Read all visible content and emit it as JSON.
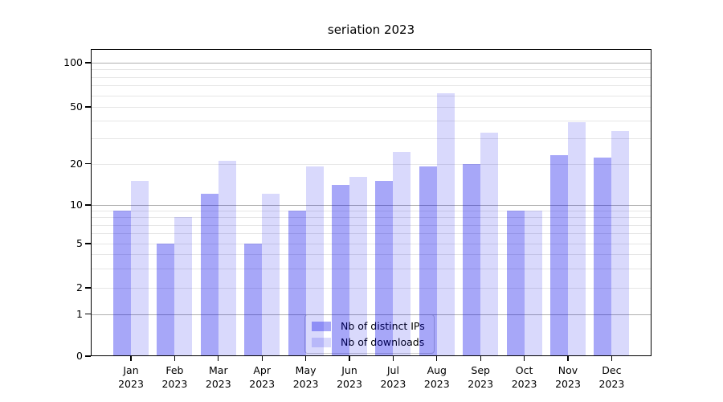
{
  "title": "seriation 2023",
  "colors": {
    "series_distinct_ips": "rgba(0,0,235,0.345)",
    "series_downloads": "rgba(0,0,235,0.148)",
    "grid_major": "#b0b0b0",
    "grid_minor": "#e6e6e6",
    "axis": "#000000",
    "legend_border": "#cccccc",
    "legend_background": "rgba(255,255,255,0.8)"
  },
  "chart_data": {
    "type": "bar",
    "title": "seriation 2023",
    "categories": [
      {
        "month": "Jan",
        "year": "2023"
      },
      {
        "month": "Feb",
        "year": "2023"
      },
      {
        "month": "Mar",
        "year": "2023"
      },
      {
        "month": "Apr",
        "year": "2023"
      },
      {
        "month": "May",
        "year": "2023"
      },
      {
        "month": "Jun",
        "year": "2023"
      },
      {
        "month": "Jul",
        "year": "2023"
      },
      {
        "month": "Aug",
        "year": "2023"
      },
      {
        "month": "Sep",
        "year": "2023"
      },
      {
        "month": "Oct",
        "year": "2023"
      },
      {
        "month": "Nov",
        "year": "2023"
      },
      {
        "month": "Dec",
        "year": "2023"
      }
    ],
    "series": [
      {
        "key": "distinct-ips",
        "name": "Nb of distinct IPs",
        "color": "rgba(0,0,235,0.345)",
        "values": [
          9,
          5,
          12,
          5,
          9,
          14,
          15,
          19,
          20,
          9,
          23,
          22
        ]
      },
      {
        "key": "downloads",
        "name": "Nb of downloads",
        "color": "rgba(0,0,235,0.148)",
        "values": [
          15,
          8,
          21,
          12,
          19,
          16,
          24,
          62,
          33,
          9,
          39,
          34
        ]
      }
    ],
    "y_axis": {
      "scale": "log-like (log1p)",
      "range": [
        0,
        100
      ],
      "ticks": [
        100,
        50,
        20,
        10,
        5,
        2,
        1,
        0
      ],
      "major_ticks": [
        1,
        10,
        100
      ],
      "minor_unlabeled_gridlines": [
        3,
        4,
        6,
        7,
        8,
        9,
        30,
        40,
        60,
        70,
        80,
        90
      ]
    },
    "grid": true,
    "legend_position": "lower center",
    "xlabel": "",
    "ylabel": ""
  }
}
